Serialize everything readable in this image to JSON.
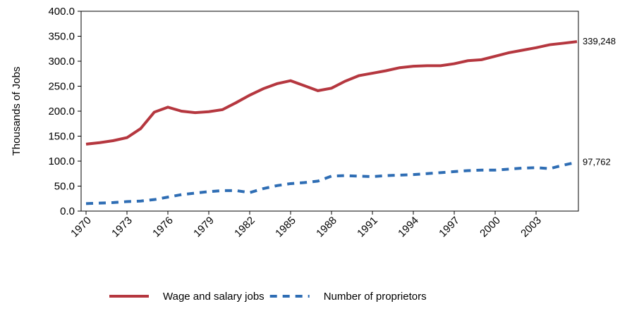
{
  "chart_data": {
    "type": "line",
    "y_label": "Thousands of Jobs",
    "x": [
      1970,
      1971,
      1972,
      1973,
      1974,
      1975,
      1976,
      1977,
      1978,
      1979,
      1980,
      1981,
      1982,
      1983,
      1984,
      1985,
      1986,
      1987,
      1988,
      1989,
      1990,
      1991,
      1992,
      1993,
      1994,
      1995,
      1996,
      1997,
      1998,
      1999,
      2000,
      2001,
      2002,
      2003,
      2004,
      2005,
      2006
    ],
    "xlim": [
      1970,
      2006
    ],
    "xticks": [
      1970,
      1973,
      1976,
      1979,
      1982,
      1985,
      1988,
      1991,
      1994,
      1997,
      2000,
      2003
    ],
    "ylim": [
      0,
      400
    ],
    "yticks": [
      {
        "value": 0,
        "label": "0.0"
      },
      {
        "value": 50,
        "label": "50.0"
      },
      {
        "value": 100,
        "label": "100.0"
      },
      {
        "value": 150,
        "label": "150.0"
      },
      {
        "value": 200,
        "label": "200.0"
      },
      {
        "value": 250,
        "label": "250.0"
      },
      {
        "value": 300,
        "label": "300.0"
      },
      {
        "value": 350,
        "label": "350.0"
      },
      {
        "value": 400,
        "label": "400.0"
      }
    ],
    "series": [
      {
        "name": "Wage and salary jobs",
        "color": "#b5373f",
        "dash": false,
        "values": [
          134,
          137,
          141,
          147,
          165,
          198,
          208,
          200,
          197,
          199,
          203,
          217,
          232,
          245,
          255,
          261,
          251,
          241,
          246,
          260,
          271,
          276,
          281,
          287,
          290,
          291,
          291,
          295,
          301,
          303,
          310,
          317,
          322,
          327,
          333,
          336,
          339.248
        ],
        "value_labels": [
          null,
          null,
          null,
          null,
          null,
          null,
          null,
          null,
          null,
          null,
          null,
          null,
          null,
          null,
          null,
          null,
          null,
          null,
          null,
          null,
          null,
          null,
          null,
          null,
          null,
          null,
          null,
          null,
          null,
          null,
          null,
          null,
          null,
          null,
          null,
          null,
          "339,248"
        ]
      },
      {
        "name": "Number of proprietors",
        "color": "#2e6db4",
        "dash": true,
        "values": [
          15,
          16,
          17,
          19,
          20,
          23,
          28,
          33,
          36,
          39,
          41,
          41,
          37,
          45,
          51,
          55,
          57,
          60,
          70,
          71,
          70,
          69,
          71,
          72,
          73,
          75,
          77,
          79,
          81,
          82,
          82,
          84,
          86,
          87,
          85,
          92,
          97.762
        ],
        "value_labels": [
          null,
          null,
          null,
          null,
          null,
          null,
          null,
          null,
          null,
          null,
          null,
          null,
          null,
          null,
          null,
          null,
          null,
          null,
          null,
          null,
          null,
          null,
          null,
          null,
          null,
          null,
          null,
          null,
          null,
          null,
          null,
          null,
          null,
          null,
          null,
          null,
          "97,762"
        ]
      }
    ]
  }
}
